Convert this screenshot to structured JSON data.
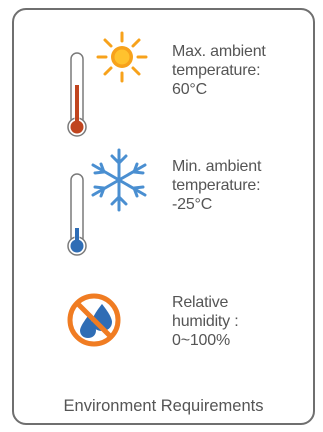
{
  "items": [
    {
      "icon": "thermometer-sun-icon",
      "lines": [
        "Max. ambient",
        "temperature:",
        "60°C"
      ]
    },
    {
      "icon": "thermometer-snowflake-icon",
      "lines": [
        "Min. ambient",
        "temperature:",
        "-25°C"
      ]
    },
    {
      "icon": "no-water-drops-icon",
      "lines": [
        "Relative",
        "humidity :",
        "0~100%"
      ]
    }
  ],
  "footer": "Environment Requirements",
  "colors": {
    "sun": "#f7a21b",
    "snowflake": "#4a8fd1",
    "hot_mercury": "#c0451f",
    "cold_mercury": "#2f6db5",
    "prohibit": "#f07c22",
    "drops": "#2f6db5",
    "text": "#555555",
    "border": "#6f6f6f"
  }
}
